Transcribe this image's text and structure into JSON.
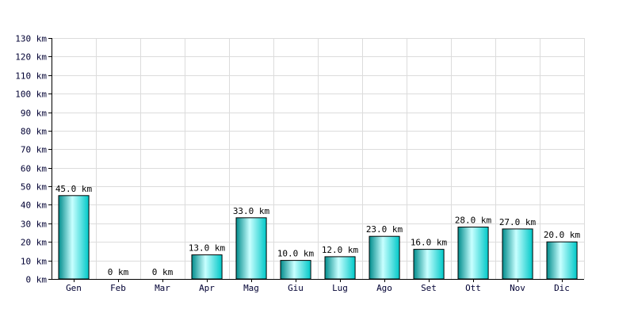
{
  "chart_data": {
    "type": "bar",
    "categories": [
      "Gen",
      "Feb",
      "Mar",
      "Apr",
      "Mag",
      "Giu",
      "Lug",
      "Ago",
      "Set",
      "Ott",
      "Nov",
      "Dic"
    ],
    "values": [
      45,
      0,
      0,
      13,
      33,
      10,
      12,
      23,
      16,
      28,
      27,
      20
    ],
    "data_labels": [
      "45.0 km",
      "0 km",
      "0 km",
      "13.0 km",
      "33.0 km",
      "10.0 km",
      "12.0 km",
      "23.0 km",
      "16.0 km",
      "28.0 km",
      "27.0 km",
      "20.0 km"
    ],
    "y_ticks": [
      0,
      10,
      20,
      30,
      40,
      50,
      60,
      70,
      80,
      90,
      100,
      110,
      120,
      130
    ],
    "y_tick_labels": [
      "0 km",
      "10 km",
      "20 km",
      "30 km",
      "40 km",
      "50 km",
      "60 km",
      "70 km",
      "80 km",
      "90 km",
      "100 km",
      "110 km",
      "120 km",
      "130 km"
    ],
    "ylim": [
      0,
      130
    ],
    "title": "",
    "xlabel": "",
    "ylabel": "",
    "grid": true,
    "bar_color": "#00c8c8",
    "bar_color_light": "#c8ffff",
    "bar_color_dark": "#008c8c"
  }
}
